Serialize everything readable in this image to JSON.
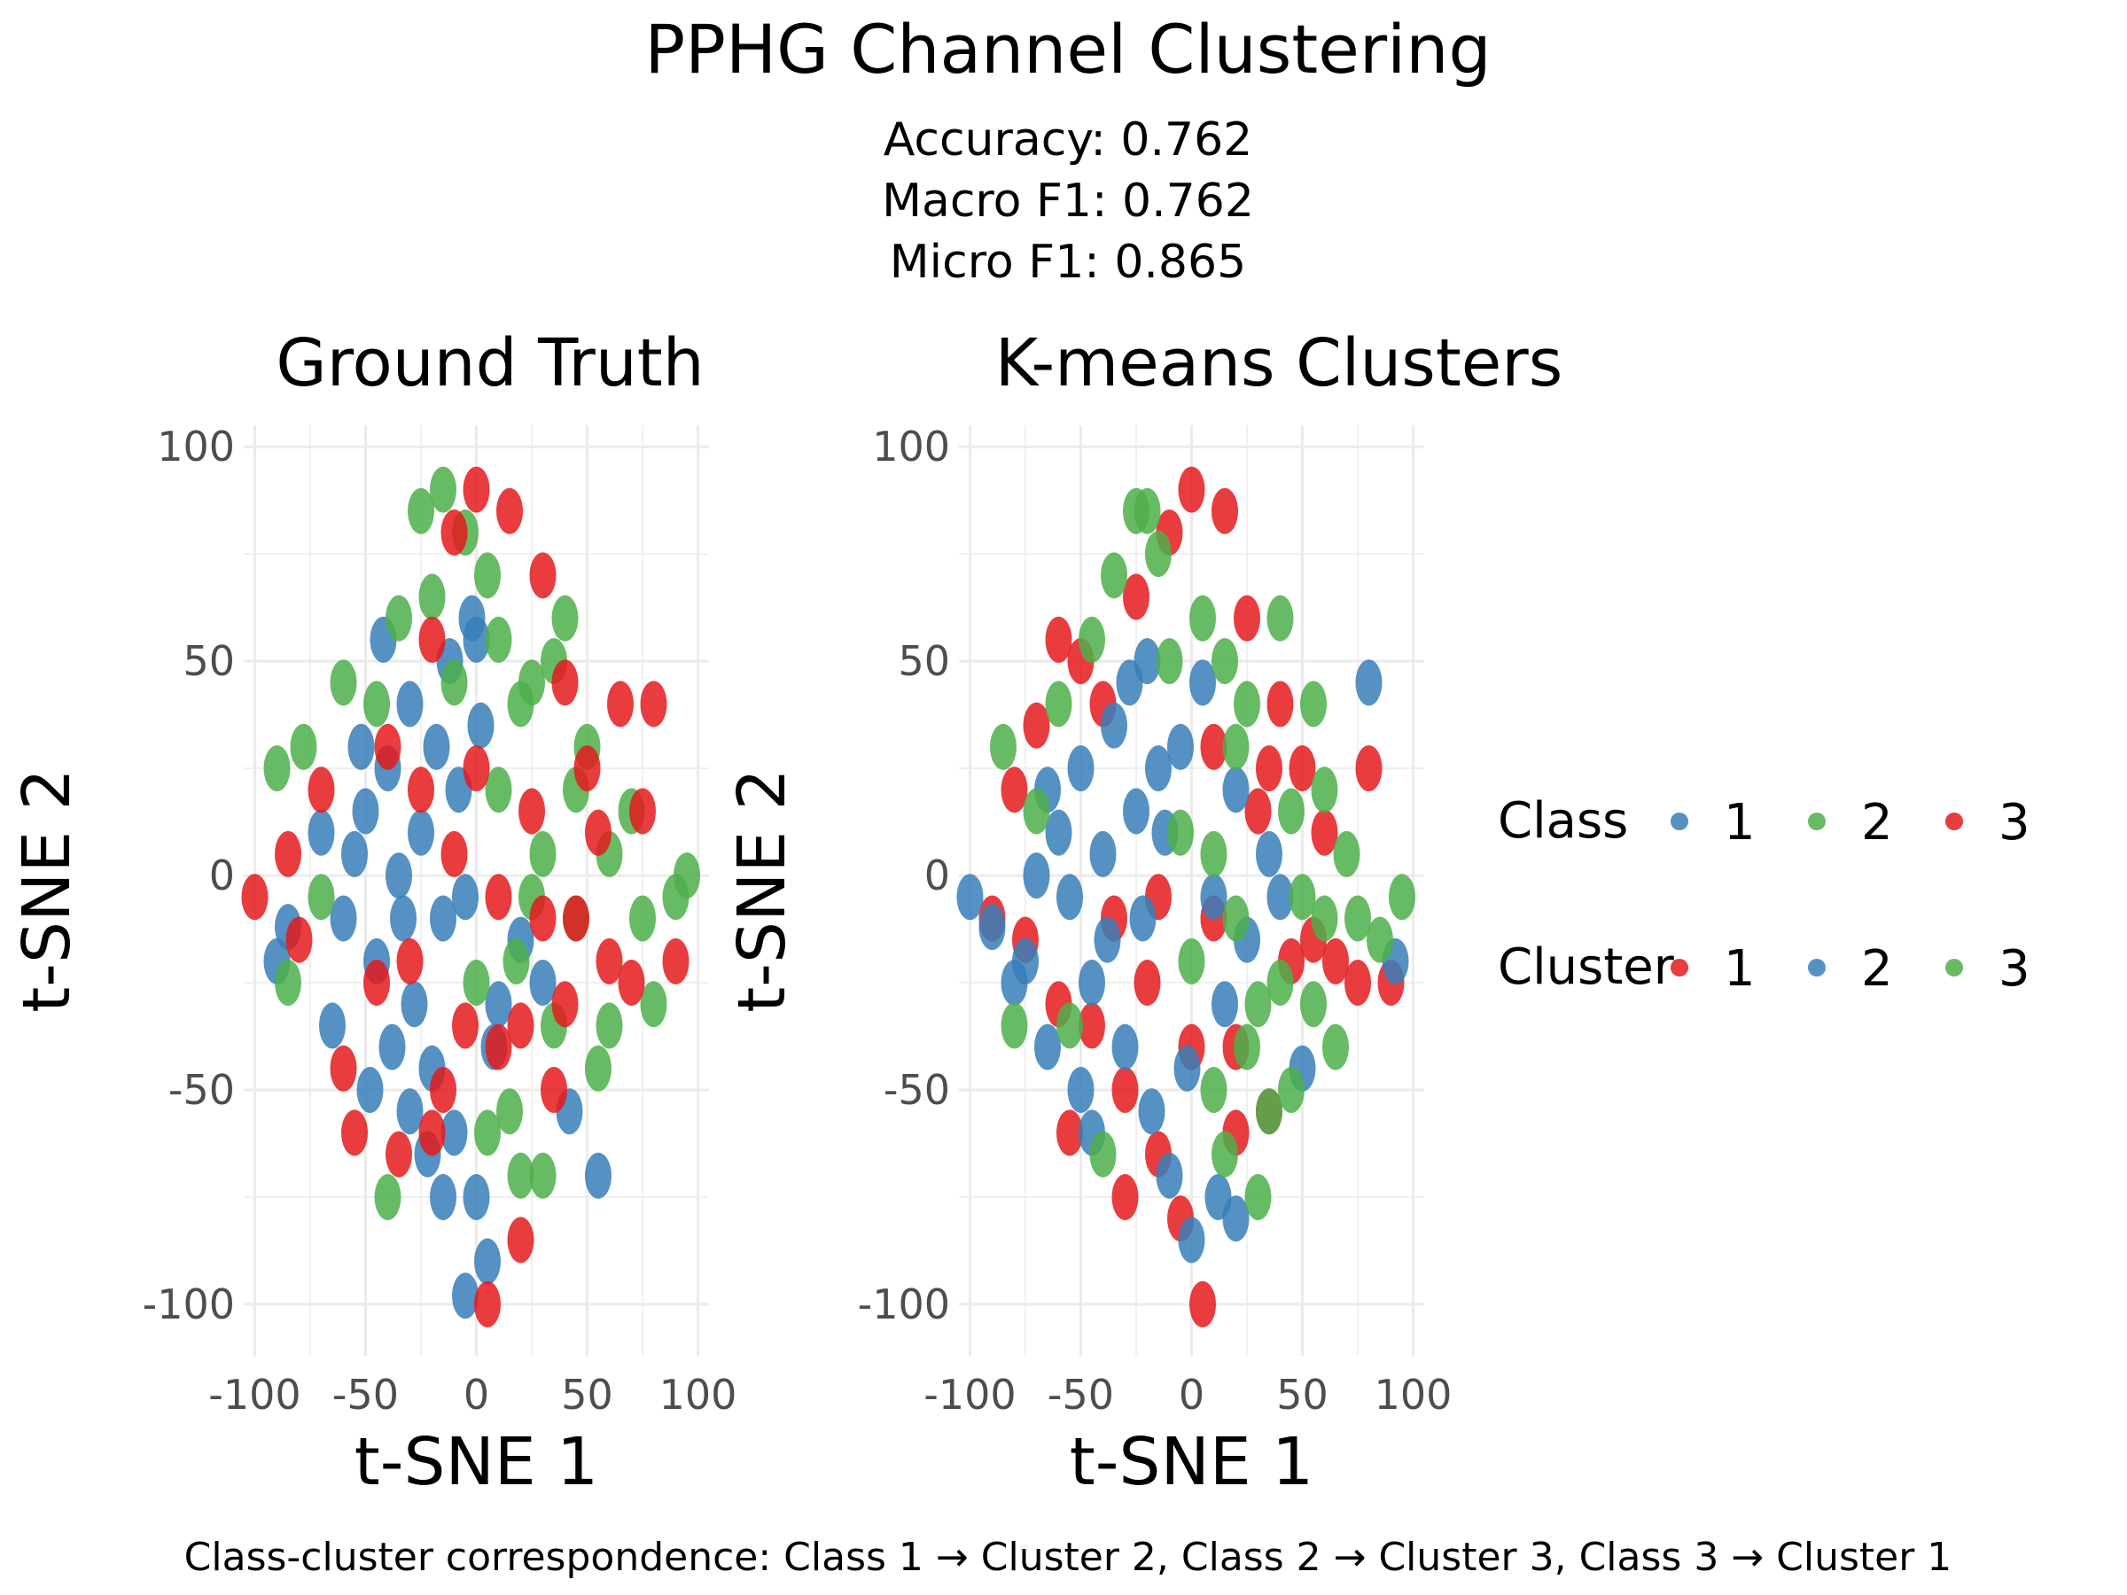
{
  "figure": {
    "title": "PPHG Channel Clustering",
    "metrics": [
      "Accuracy: 0.762",
      "Macro F1: 0.762",
      "Micro F1: 0.865"
    ],
    "caption": "Class-cluster correspondence: Class 1 → Cluster 2, Class 2 → Cluster 3, Class 3 → Cluster 1"
  },
  "colors": {
    "blue": "#377EB8",
    "green": "#4DAF4A",
    "red": "#E41A1C",
    "grid": "#EBEBEB",
    "text": "#4D4D4D"
  },
  "legend": [
    {
      "title": "Class",
      "items": [
        {
          "label": "1",
          "color": "#377EB8"
        },
        {
          "label": "2",
          "color": "#4DAF4A"
        },
        {
          "label": "3",
          "color": "#E41A1C"
        }
      ]
    },
    {
      "title": "Cluster",
      "items": [
        {
          "label": "1",
          "color": "#E41A1C"
        },
        {
          "label": "2",
          "color": "#377EB8"
        },
        {
          "label": "3",
          "color": "#4DAF4A"
        }
      ]
    }
  ],
  "chart_data": [
    {
      "type": "scatter",
      "title": "Ground Truth",
      "xlabel": "t-SNE 1",
      "ylabel": "t-SNE 2",
      "xlim": [
        -105,
        105
      ],
      "ylim": [
        -112,
        105
      ],
      "xticks": [
        -100,
        -50,
        0,
        50,
        100
      ],
      "yticks": [
        -100,
        -50,
        0,
        50,
        100
      ],
      "xtick_labels": [
        "-100",
        "-50",
        "0",
        "50",
        "100"
      ],
      "ytick_labels": [
        "-100",
        "-50",
        "0",
        "50",
        "100"
      ],
      "grid": true,
      "legend_field": "Class",
      "series": [
        {
          "name": "1",
          "color": "#377EB8",
          "points": [
            [
              -60,
              -10
            ],
            [
              -55,
              5
            ],
            [
              -50,
              15
            ],
            [
              -45,
              -20
            ],
            [
              -40,
              25
            ],
            [
              -35,
              0
            ],
            [
              -30,
              40
            ],
            [
              -28,
              -30
            ],
            [
              -25,
              10
            ],
            [
              -20,
              -45
            ],
            [
              -18,
              30
            ],
            [
              -15,
              -10
            ],
            [
              -12,
              50
            ],
            [
              -10,
              -60
            ],
            [
              -8,
              20
            ],
            [
              -5,
              -5
            ],
            [
              -2,
              60
            ],
            [
              0,
              -75
            ],
            [
              2,
              35
            ],
            [
              5,
              -90
            ],
            [
              -65,
              -35
            ],
            [
              -70,
              10
            ],
            [
              -48,
              -50
            ],
            [
              -38,
              -40
            ],
            [
              -22,
              -65
            ],
            [
              -5,
              -98
            ],
            [
              10,
              -30
            ],
            [
              20,
              -15
            ],
            [
              30,
              -25
            ],
            [
              42,
              -55
            ],
            [
              55,
              -70
            ],
            [
              -85,
              -12
            ],
            [
              -90,
              -20
            ],
            [
              -42,
              55
            ],
            [
              -30,
              -55
            ],
            [
              -15,
              -75
            ],
            [
              0,
              55
            ],
            [
              8,
              -40
            ],
            [
              -52,
              30
            ],
            [
              -33,
              -10
            ]
          ]
        },
        {
          "name": "2",
          "color": "#4DAF4A",
          "points": [
            [
              -90,
              25
            ],
            [
              -85,
              -25
            ],
            [
              -78,
              30
            ],
            [
              -70,
              -5
            ],
            [
              -60,
              45
            ],
            [
              -45,
              40
            ],
            [
              -35,
              60
            ],
            [
              -25,
              85
            ],
            [
              -20,
              65
            ],
            [
              -10,
              45
            ],
            [
              0,
              -25
            ],
            [
              5,
              70
            ],
            [
              10,
              20
            ],
            [
              15,
              -55
            ],
            [
              20,
              -70
            ],
            [
              25,
              45
            ],
            [
              30,
              5
            ],
            [
              35,
              -35
            ],
            [
              40,
              60
            ],
            [
              45,
              -10
            ],
            [
              50,
              30
            ],
            [
              55,
              -45
            ],
            [
              60,
              5
            ],
            [
              70,
              15
            ],
            [
              80,
              -30
            ],
            [
              90,
              -5
            ],
            [
              95,
              0
            ],
            [
              -40,
              -75
            ],
            [
              -5,
              80
            ],
            [
              10,
              55
            ],
            [
              25,
              -5
            ],
            [
              35,
              50
            ],
            [
              45,
              20
            ],
            [
              60,
              -35
            ],
            [
              75,
              -10
            ],
            [
              18,
              -20
            ],
            [
              5,
              -60
            ],
            [
              30,
              -70
            ],
            [
              20,
              40
            ],
            [
              -15,
              90
            ]
          ]
        },
        {
          "name": "3",
          "color": "#E41A1C",
          "points": [
            [
              -100,
              -5
            ],
            [
              -85,
              5
            ],
            [
              -80,
              -15
            ],
            [
              -70,
              20
            ],
            [
              -60,
              -45
            ],
            [
              -55,
              -60
            ],
            [
              -45,
              -25
            ],
            [
              -40,
              30
            ],
            [
              -30,
              -20
            ],
            [
              -25,
              20
            ],
            [
              -20,
              55
            ],
            [
              -15,
              -50
            ],
            [
              -10,
              80
            ],
            [
              -5,
              -35
            ],
            [
              0,
              90
            ],
            [
              5,
              -100
            ],
            [
              10,
              -5
            ],
            [
              15,
              85
            ],
            [
              20,
              -85
            ],
            [
              25,
              15
            ],
            [
              30,
              70
            ],
            [
              35,
              -50
            ],
            [
              40,
              45
            ],
            [
              45,
              -10
            ],
            [
              50,
              25
            ],
            [
              60,
              -20
            ],
            [
              65,
              40
            ],
            [
              70,
              -25
            ],
            [
              75,
              15
            ],
            [
              80,
              40
            ],
            [
              90,
              -20
            ],
            [
              -35,
              -65
            ],
            [
              -20,
              -60
            ],
            [
              10,
              -40
            ],
            [
              30,
              -10
            ],
            [
              55,
              10
            ],
            [
              0,
              25
            ],
            [
              20,
              -35
            ],
            [
              40,
              -30
            ],
            [
              -10,
              5
            ]
          ]
        }
      ]
    },
    {
      "type": "scatter",
      "title": "K-means Clusters",
      "xlabel": "t-SNE 1",
      "ylabel": "t-SNE 2",
      "xlim": [
        -105,
        105
      ],
      "ylim": [
        -112,
        105
      ],
      "xticks": [
        -100,
        -50,
        0,
        50,
        100
      ],
      "yticks": [
        -100,
        -50,
        0,
        50,
        100
      ],
      "xtick_labels": [
        "-100",
        "-50",
        "0",
        "50",
        "100"
      ],
      "ytick_labels": [
        "-100",
        "-50",
        "0",
        "50",
        "100"
      ],
      "grid": true,
      "legend_field": "Cluster",
      "series": [
        {
          "name": "1",
          "color": "#E41A1C",
          "points": [
            [
              -90,
              -10
            ],
            [
              -80,
              20
            ],
            [
              -75,
              -15
            ],
            [
              -70,
              35
            ],
            [
              -60,
              -30
            ],
            [
              -55,
              -60
            ],
            [
              -45,
              -35
            ],
            [
              -40,
              40
            ],
            [
              -35,
              -10
            ],
            [
              -30,
              -50
            ],
            [
              -25,
              65
            ],
            [
              -20,
              -25
            ],
            [
              -15,
              -65
            ],
            [
              -10,
              80
            ],
            [
              -5,
              -80
            ],
            [
              0,
              90
            ],
            [
              5,
              -100
            ],
            [
              10,
              -10
            ],
            [
              15,
              85
            ],
            [
              20,
              -40
            ],
            [
              25,
              60
            ],
            [
              30,
              15
            ],
            [
              35,
              -55
            ],
            [
              40,
              40
            ],
            [
              45,
              -20
            ],
            [
              50,
              25
            ],
            [
              60,
              10
            ],
            [
              65,
              -20
            ],
            [
              75,
              -25
            ],
            [
              80,
              25
            ],
            [
              90,
              -25
            ],
            [
              -50,
              50
            ],
            [
              -30,
              -75
            ],
            [
              0,
              -40
            ],
            [
              20,
              -60
            ],
            [
              35,
              25
            ],
            [
              55,
              -15
            ],
            [
              -15,
              -5
            ],
            [
              10,
              30
            ],
            [
              -60,
              55
            ]
          ]
        },
        {
          "name": "2",
          "color": "#377EB8",
          "points": [
            [
              -100,
              -5
            ],
            [
              -90,
              -12
            ],
            [
              -80,
              -25
            ],
            [
              -70,
              0
            ],
            [
              -65,
              -40
            ],
            [
              -60,
              10
            ],
            [
              -55,
              -5
            ],
            [
              -50,
              25
            ],
            [
              -45,
              -25
            ],
            [
              -40,
              5
            ],
            [
              -35,
              35
            ],
            [
              -30,
              -40
            ],
            [
              -25,
              15
            ],
            [
              -20,
              50
            ],
            [
              -18,
              -55
            ],
            [
              -15,
              25
            ],
            [
              -10,
              -70
            ],
            [
              -5,
              30
            ],
            [
              0,
              -85
            ],
            [
              5,
              45
            ],
            [
              10,
              -5
            ],
            [
              15,
              -30
            ],
            [
              20,
              20
            ],
            [
              25,
              -15
            ],
            [
              35,
              5
            ],
            [
              40,
              -5
            ],
            [
              50,
              -45
            ],
            [
              -75,
              -20
            ],
            [
              -65,
              20
            ],
            [
              -50,
              -50
            ],
            [
              -38,
              -15
            ],
            [
              -28,
              45
            ],
            [
              -12,
              10
            ],
            [
              -2,
              -45
            ],
            [
              12,
              -75
            ],
            [
              20,
              -80
            ],
            [
              80,
              45
            ],
            [
              92,
              -20
            ],
            [
              -45,
              -60
            ],
            [
              -22,
              -10
            ]
          ]
        },
        {
          "name": "3",
          "color": "#4DAF4A",
          "points": [
            [
              -85,
              30
            ],
            [
              -80,
              -35
            ],
            [
              -70,
              15
            ],
            [
              -60,
              40
            ],
            [
              -45,
              55
            ],
            [
              -35,
              70
            ],
            [
              -25,
              85
            ],
            [
              -15,
              75
            ],
            [
              -10,
              50
            ],
            [
              0,
              -20
            ],
            [
              5,
              60
            ],
            [
              10,
              5
            ],
            [
              15,
              50
            ],
            [
              20,
              -10
            ],
            [
              25,
              40
            ],
            [
              30,
              -30
            ],
            [
              35,
              -55
            ],
            [
              40,
              60
            ],
            [
              45,
              15
            ],
            [
              50,
              -5
            ],
            [
              55,
              -30
            ],
            [
              60,
              20
            ],
            [
              65,
              -40
            ],
            [
              70,
              5
            ],
            [
              75,
              -10
            ],
            [
              85,
              -15
            ],
            [
              95,
              -5
            ],
            [
              -55,
              -35
            ],
            [
              -40,
              -65
            ],
            [
              -20,
              85
            ],
            [
              10,
              -50
            ],
            [
              20,
              30
            ],
            [
              30,
              -75
            ],
            [
              45,
              -50
            ],
            [
              55,
              40
            ],
            [
              15,
              -65
            ],
            [
              25,
              -40
            ],
            [
              40,
              -25
            ],
            [
              -5,
              10
            ],
            [
              60,
              -10
            ]
          ]
        }
      ]
    }
  ]
}
